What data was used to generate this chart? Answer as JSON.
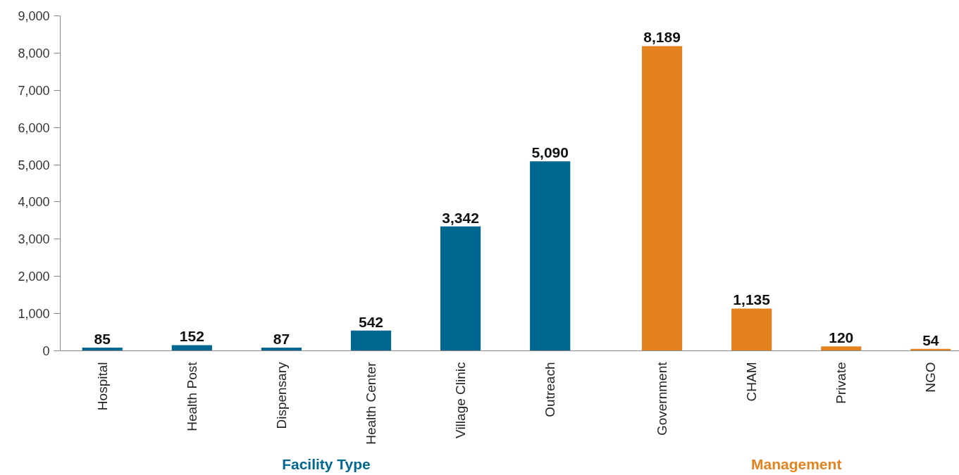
{
  "chart_data": {
    "type": "bar",
    "categories": [
      "Hospital",
      "Health Post",
      "Dispensary",
      "Health Center",
      "Village Clinic",
      "Outreach",
      "Government",
      "CHAM",
      "Private",
      "NGO"
    ],
    "series": [
      {
        "name": "Facility Type",
        "color": "#006890",
        "values": [
          85,
          152,
          87,
          542,
          3342,
          5090,
          null,
          null,
          null,
          null
        ],
        "value_labels": [
          "85",
          "152",
          "87",
          "542",
          "3,342",
          "5,090",
          null,
          null,
          null,
          null
        ]
      },
      {
        "name": "Management",
        "color": "#e58220",
        "values": [
          null,
          null,
          null,
          null,
          null,
          null,
          8189,
          1135,
          120,
          54
        ],
        "value_labels": [
          null,
          null,
          null,
          null,
          null,
          null,
          "8,189",
          "1,135",
          "120",
          "54"
        ]
      }
    ],
    "ylim": [
      0,
      9000
    ],
    "yticks": [
      0,
      {
        "value": 1000,
        "label": "1,000"
      },
      {
        "value": 2000,
        "label": "2,000"
      },
      {
        "value": 3000,
        "label": "3,000"
      },
      {
        "value": 4000,
        "label": "4,000"
      },
      {
        "value": 5000,
        "label": "5,000"
      },
      {
        "value": 6000,
        "label": "6,000"
      },
      {
        "value": 7000,
        "label": "7,000"
      },
      {
        "value": 8000,
        "label": "8,000"
      },
      {
        "value": 9000,
        "label": "9,000"
      }
    ],
    "grid": false
  }
}
